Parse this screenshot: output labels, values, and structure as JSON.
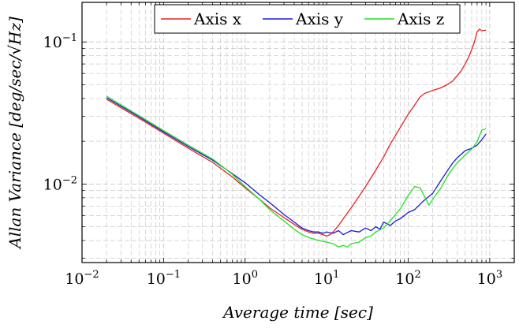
{
  "chart_data": {
    "type": "line",
    "xlabel": "Average time [sec]",
    "ylabel": "Allan Variance [deg/sec/√Hz]",
    "xscale": "log",
    "yscale": "log",
    "xlim": [
      0.01,
      2000
    ],
    "ylim": [
      0.0028,
      0.19
    ],
    "grid": true,
    "legend_position": "top-right",
    "x_ticks": [
      {
        "value": 0.01,
        "base": "10",
        "exp": "−2"
      },
      {
        "value": 0.1,
        "base": "10",
        "exp": "−1"
      },
      {
        "value": 1,
        "base": "10",
        "exp": "0"
      },
      {
        "value": 10,
        "base": "10",
        "exp": "1"
      },
      {
        "value": 100,
        "base": "10",
        "exp": "2"
      },
      {
        "value": 1000,
        "base": "10",
        "exp": "3"
      }
    ],
    "y_ticks": [
      {
        "value": 0.01,
        "base": "10",
        "exp": "−2"
      },
      {
        "value": 0.1,
        "base": "10",
        "exp": "−1"
      }
    ],
    "series": [
      {
        "name": "Axis x",
        "color": "#e8211d",
        "x": [
          0.02,
          0.05,
          0.1,
          0.2,
          0.4,
          0.7,
          1,
          1.5,
          2,
          3,
          4,
          5,
          6,
          7,
          8,
          9,
          10,
          11,
          12,
          14,
          16,
          20,
          25,
          30,
          40,
          50,
          60,
          70,
          80,
          100,
          120,
          140,
          160,
          200,
          250,
          300,
          350,
          400,
          450,
          500,
          550,
          600,
          650,
          700,
          750,
          800,
          900
        ],
        "y": [
          0.0395,
          0.029,
          0.0228,
          0.0179,
          0.0142,
          0.0112,
          0.0094,
          0.0078,
          0.0068,
          0.0058,
          0.0052,
          0.0048,
          0.0046,
          0.0045,
          0.0045,
          0.0044,
          0.0043,
          0.0044,
          0.0046,
          0.0051,
          0.0057,
          0.0068,
          0.0082,
          0.0096,
          0.0125,
          0.0155,
          0.019,
          0.022,
          0.025,
          0.031,
          0.036,
          0.041,
          0.0435,
          0.0455,
          0.0475,
          0.05,
          0.053,
          0.058,
          0.063,
          0.07,
          0.078,
          0.088,
          0.1,
          0.118,
          0.123,
          0.12,
          0.121
        ]
      },
      {
        "name": "Axis y",
        "color": "#1a1ad9",
        "x": [
          0.02,
          0.05,
          0.1,
          0.2,
          0.4,
          0.7,
          1,
          1.5,
          2,
          3,
          4,
          5,
          6,
          7,
          8,
          9,
          10,
          12,
          14,
          16,
          20,
          25,
          30,
          35,
          40,
          45,
          50,
          60,
          70,
          80,
          100,
          120,
          150,
          200,
          250,
          300,
          350,
          400,
          500,
          600,
          700,
          800,
          900
        ],
        "y": [
          0.0405,
          0.0297,
          0.0233,
          0.0184,
          0.0147,
          0.0118,
          0.0102,
          0.0084,
          0.0074,
          0.0061,
          0.0054,
          0.0049,
          0.0047,
          0.0046,
          0.0046,
          0.0045,
          0.0046,
          0.0045,
          0.0047,
          0.0044,
          0.0047,
          0.0046,
          0.0049,
          0.0047,
          0.005,
          0.0048,
          0.0054,
          0.0051,
          0.0055,
          0.0057,
          0.0063,
          0.0066,
          0.0075,
          0.0086,
          0.0105,
          0.0123,
          0.014,
          0.0153,
          0.0172,
          0.0178,
          0.0188,
          0.0205,
          0.0225
        ]
      },
      {
        "name": "Axis z",
        "color": "#21e021",
        "x": [
          0.02,
          0.05,
          0.1,
          0.2,
          0.4,
          0.7,
          1,
          1.5,
          2,
          3,
          4,
          5,
          6,
          7,
          8,
          10,
          12,
          14,
          16,
          18,
          20,
          25,
          30,
          35,
          40,
          50,
          60,
          70,
          80,
          100,
          120,
          140,
          160,
          180,
          200,
          250,
          300,
          350,
          400,
          500,
          600,
          700,
          800,
          900
        ],
        "y": [
          0.0415,
          0.0303,
          0.0238,
          0.0188,
          0.015,
          0.0117,
          0.0096,
          0.0078,
          0.0066,
          0.0055,
          0.0048,
          0.0044,
          0.0042,
          0.0041,
          0.004,
          0.0039,
          0.0038,
          0.0036,
          0.0037,
          0.0036,
          0.0038,
          0.0039,
          0.0042,
          0.0043,
          0.0046,
          0.0049,
          0.0055,
          0.0061,
          0.0067,
          0.0083,
          0.0096,
          0.0094,
          0.0081,
          0.0071,
          0.0078,
          0.0093,
          0.0112,
          0.0128,
          0.0141,
          0.016,
          0.0176,
          0.0198,
          0.024,
          0.0245
        ]
      }
    ]
  }
}
